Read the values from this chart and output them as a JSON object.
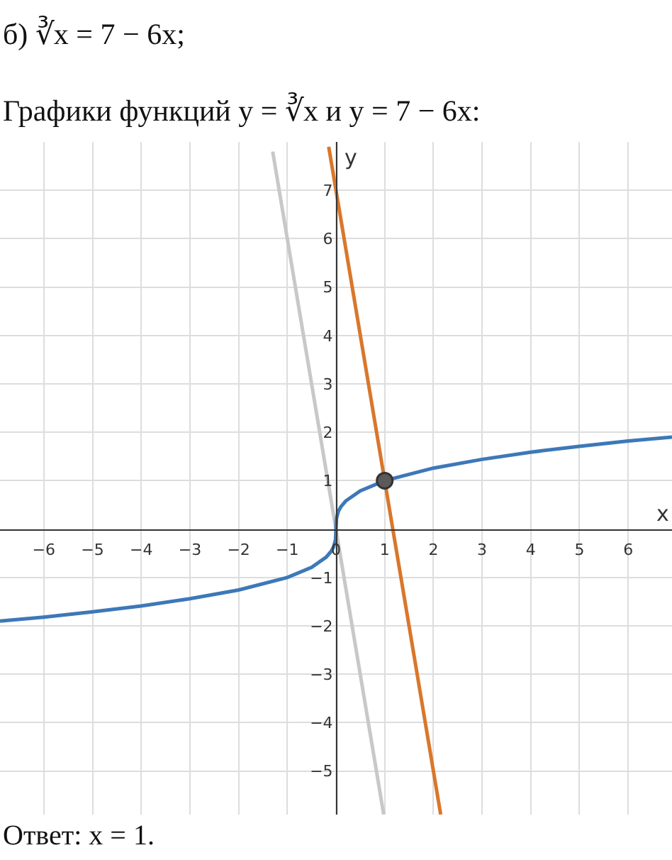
{
  "chart_data": {
    "type": "line",
    "title": "б) ∛x = 7 − 6x;",
    "subtitle": "Графики функций y = ∛x и y = 7 − 6x:",
    "xlabel": "x",
    "ylabel": "y",
    "annotations": [
      "Ответ: x = 1."
    ],
    "series": [
      {
        "color": "#c8c8c8",
        "x": [
          -1.3,
          0.98
        ],
        "values": [
          7.8,
          -5.9
        ]
      },
      {
        "color": "#3d78b8",
        "x": [
          -6.9,
          -6,
          -5,
          -4,
          -3,
          -2,
          -1,
          -0.5,
          -0.2,
          -0.1,
          -0.05,
          -0.01,
          0,
          0.01,
          0.05,
          0.1,
          0.2,
          0.5,
          1,
          2,
          3,
          4,
          5,
          6,
          6.9
        ],
        "values": [
          -1.9,
          -1.82,
          -1.71,
          -1.59,
          -1.44,
          -1.26,
          -1,
          -0.79,
          -0.58,
          -0.46,
          -0.37,
          -0.22,
          0,
          0.22,
          0.37,
          0.46,
          0.58,
          0.79,
          1,
          1.26,
          1.44,
          1.59,
          1.71,
          1.82,
          1.9
        ]
      },
      {
        "color": "#d9772b",
        "x": [
          -0.15,
          2.15
        ],
        "values": [
          7.9,
          -5.9
        ]
      },
      {
        "type": "scatter",
        "color": "#5a5a5a",
        "x": [
          1
        ],
        "values": [
          1
        ],
        "marker": "circle"
      }
    ],
    "xlim": [
      -6.9,
      6.9
    ],
    "ylim": [
      -5.9,
      8
    ],
    "xticks": [
      -6,
      -5,
      -4,
      -3,
      -2,
      -1,
      0,
      1,
      2,
      3,
      4,
      5,
      6
    ],
    "yticks": [
      -5,
      -4,
      -3,
      -2,
      -1,
      1,
      2,
      3,
      4,
      5,
      6,
      7
    ],
    "grid": true
  }
}
